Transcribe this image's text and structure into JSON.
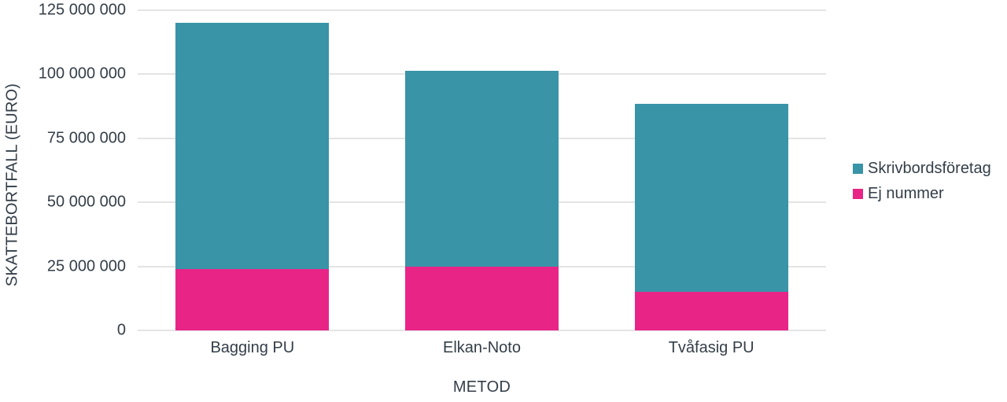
{
  "chart_data": {
    "type": "bar",
    "stacked": true,
    "title": "",
    "xlabel": "METOD",
    "ylabel": "SKATTEBORTFALL (EURO)",
    "categories": [
      "Bagging PU",
      "Elkan-Noto",
      "Tvåfasig PU"
    ],
    "series": [
      {
        "name": "Ej nummer",
        "color": "#e92487",
        "values": [
          24000000,
          25000000,
          15000000
        ]
      },
      {
        "name": "Skrivbordsföretag",
        "color": "#3994a8",
        "values": [
          96000000,
          76500000,
          73500000
        ]
      }
    ],
    "stack_order": "first series at bottom",
    "totals": [
      120000000,
      101500000,
      88500000
    ],
    "ylim": [
      0,
      125000000
    ],
    "y_ticks": [
      0,
      25000000,
      50000000,
      75000000,
      100000000,
      125000000
    ],
    "y_tick_labels": [
      "0",
      "25 000 000",
      "50 000 000",
      "75 000 000",
      "100 000 000",
      "125 000 000"
    ],
    "legend": [
      "Skrivbordsföretag",
      "Ej nummer"
    ],
    "legend_position": "right",
    "grid": "horizontal"
  },
  "colors": {
    "teal": "#3994a8",
    "magenta": "#e92487",
    "text": "#333e48",
    "gridline": "#e4e4e4",
    "background": "#ffffff"
  }
}
